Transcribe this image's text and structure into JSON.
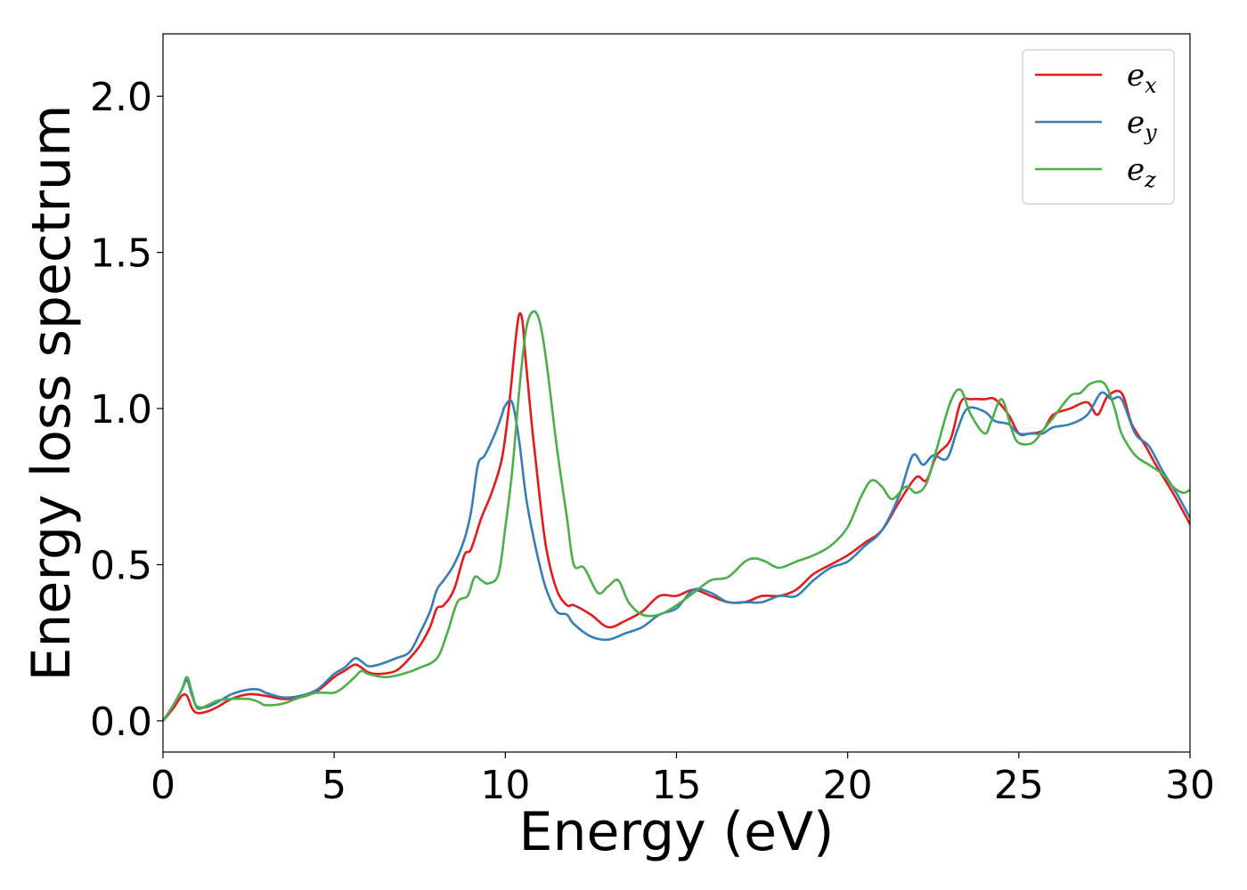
{
  "chart_data": {
    "type": "line",
    "title": "",
    "xlabel": "Energy (eV)",
    "ylabel": "Energy loss spectrum",
    "xlim": [
      0,
      30
    ],
    "ylim": [
      -0.1,
      2.2
    ],
    "xticks": [
      0,
      5,
      10,
      15,
      20,
      25,
      30
    ],
    "yticks": [
      0.0,
      0.5,
      1.0,
      1.5,
      2.0
    ],
    "xtick_labels": [
      "0",
      "5",
      "10",
      "15",
      "20",
      "25",
      "30"
    ],
    "ytick_labels": [
      "0.0",
      "0.5",
      "1.0",
      "1.5",
      "2.0"
    ],
    "grid": false,
    "legend_position": "top-right",
    "series": [
      {
        "name": "e_x",
        "legend_base": "e",
        "legend_sub": "x",
        "color": "#e41a1c",
        "x": [
          0,
          0.3,
          0.55,
          0.7,
          0.85,
          1.0,
          1.3,
          1.6,
          2.0,
          2.5,
          3.0,
          3.5,
          4.0,
          4.5,
          5.0,
          5.3,
          5.6,
          5.8,
          6.0,
          6.3,
          6.8,
          7.2,
          7.5,
          7.8,
          8.0,
          8.2,
          8.5,
          8.8,
          9.0,
          9.3,
          9.6,
          9.9,
          10.1,
          10.3,
          10.4,
          10.5,
          10.6,
          10.8,
          11.0,
          11.2,
          11.5,
          11.8,
          12.0,
          12.5,
          13.0,
          13.5,
          14.0,
          14.5,
          15.0,
          15.5,
          16.0,
          16.5,
          17.0,
          17.5,
          18.0,
          18.5,
          19.0,
          19.5,
          20.0,
          20.5,
          21.0,
          21.5,
          22.0,
          22.3,
          22.6,
          23.0,
          23.3,
          23.6,
          24.0,
          24.3,
          24.7,
          25.0,
          25.3,
          25.7,
          26.0,
          26.5,
          27.0,
          27.3,
          27.6,
          28.0,
          28.3,
          28.7,
          29.0,
          29.5,
          30.0
        ],
        "y": [
          0.0,
          0.04,
          0.08,
          0.08,
          0.04,
          0.025,
          0.03,
          0.045,
          0.07,
          0.085,
          0.08,
          0.07,
          0.075,
          0.095,
          0.14,
          0.16,
          0.18,
          0.17,
          0.155,
          0.15,
          0.16,
          0.2,
          0.24,
          0.3,
          0.36,
          0.37,
          0.42,
          0.53,
          0.55,
          0.65,
          0.73,
          0.84,
          1.0,
          1.22,
          1.3,
          1.28,
          1.15,
          0.92,
          0.72,
          0.55,
          0.42,
          0.37,
          0.37,
          0.34,
          0.3,
          0.32,
          0.35,
          0.4,
          0.4,
          0.42,
          0.4,
          0.38,
          0.38,
          0.4,
          0.4,
          0.42,
          0.47,
          0.5,
          0.53,
          0.57,
          0.61,
          0.7,
          0.78,
          0.77,
          0.85,
          0.9,
          1.02,
          1.03,
          1.03,
          1.03,
          0.98,
          0.92,
          0.92,
          0.93,
          0.98,
          1.0,
          1.02,
          0.98,
          1.04,
          1.05,
          0.95,
          0.88,
          0.82,
          0.73,
          0.63
        ]
      },
      {
        "name": "e_y",
        "legend_base": "e",
        "legend_sub": "y",
        "color": "#377eb8",
        "x": [
          0,
          0.3,
          0.55,
          0.7,
          0.85,
          1.0,
          1.3,
          1.6,
          2.0,
          2.5,
          2.8,
          3.0,
          3.5,
          4.0,
          4.5,
          5.0,
          5.3,
          5.6,
          5.8,
          6.0,
          6.3,
          6.8,
          7.2,
          7.5,
          7.8,
          8.0,
          8.2,
          8.5,
          8.8,
          9.0,
          9.2,
          9.4,
          9.7,
          9.9,
          10.0,
          10.2,
          10.4,
          10.6,
          10.8,
          11.0,
          11.2,
          11.5,
          11.8,
          12.0,
          12.5,
          13.0,
          13.5,
          14.0,
          14.5,
          15.0,
          15.5,
          16.0,
          16.5,
          17.0,
          17.5,
          18.0,
          18.5,
          19.0,
          19.5,
          20.0,
          20.5,
          21.0,
          21.5,
          21.9,
          22.2,
          22.5,
          22.9,
          23.2,
          23.5,
          24.0,
          24.3,
          24.7,
          25.0,
          25.4,
          25.7,
          26.0,
          26.5,
          27.0,
          27.4,
          27.7,
          28.0,
          28.4,
          28.8,
          29.2,
          29.6,
          30.0
        ],
        "y": [
          0.0,
          0.05,
          0.1,
          0.13,
          0.08,
          0.045,
          0.045,
          0.06,
          0.085,
          0.1,
          0.1,
          0.09,
          0.075,
          0.08,
          0.1,
          0.15,
          0.17,
          0.2,
          0.19,
          0.175,
          0.18,
          0.2,
          0.22,
          0.28,
          0.35,
          0.42,
          0.45,
          0.5,
          0.58,
          0.67,
          0.82,
          0.85,
          0.92,
          0.98,
          1.01,
          1.02,
          0.9,
          0.72,
          0.6,
          0.5,
          0.42,
          0.35,
          0.34,
          0.31,
          0.27,
          0.26,
          0.28,
          0.3,
          0.34,
          0.36,
          0.42,
          0.41,
          0.38,
          0.38,
          0.38,
          0.4,
          0.4,
          0.45,
          0.49,
          0.51,
          0.56,
          0.61,
          0.72,
          0.85,
          0.82,
          0.85,
          0.84,
          0.93,
          1.0,
          0.99,
          0.96,
          0.95,
          0.92,
          0.92,
          0.92,
          0.94,
          0.95,
          0.98,
          1.05,
          1.03,
          1.03,
          0.92,
          0.88,
          0.8,
          0.73,
          0.65
        ]
      },
      {
        "name": "e_z",
        "legend_base": "e",
        "legend_sub": "z",
        "color": "#4daf4a",
        "x": [
          0,
          0.3,
          0.55,
          0.7,
          0.85,
          1.0,
          1.3,
          1.6,
          2.0,
          2.5,
          2.8,
          3.0,
          3.5,
          4.0,
          4.5,
          5.0,
          5.3,
          5.6,
          5.8,
          6.0,
          6.5,
          7.0,
          7.5,
          8.0,
          8.3,
          8.6,
          8.9,
          9.1,
          9.3,
          9.5,
          9.8,
          10.0,
          10.2,
          10.4,
          10.6,
          10.8,
          11.0,
          11.2,
          11.5,
          11.8,
          12.0,
          12.3,
          12.7,
          13.0,
          13.3,
          13.6,
          14.0,
          14.5,
          15.0,
          15.5,
          16.0,
          16.5,
          17.0,
          17.3,
          17.6,
          18.0,
          18.5,
          19.0,
          19.5,
          20.0,
          20.4,
          20.7,
          21.0,
          21.3,
          21.7,
          22.0,
          22.3,
          22.6,
          23.0,
          23.3,
          23.6,
          24.0,
          24.2,
          24.5,
          24.8,
          25.0,
          25.4,
          25.7,
          26.0,
          26.5,
          26.8,
          27.1,
          27.5,
          27.8,
          28.0,
          28.4,
          28.8,
          29.2,
          29.5,
          29.8,
          30.0
        ],
        "y": [
          0.0,
          0.05,
          0.1,
          0.14,
          0.09,
          0.04,
          0.05,
          0.065,
          0.07,
          0.07,
          0.06,
          0.05,
          0.055,
          0.075,
          0.09,
          0.09,
          0.11,
          0.14,
          0.16,
          0.15,
          0.14,
          0.15,
          0.17,
          0.2,
          0.28,
          0.38,
          0.4,
          0.46,
          0.45,
          0.44,
          0.47,
          0.62,
          0.8,
          1.05,
          1.25,
          1.31,
          1.28,
          1.15,
          0.88,
          0.65,
          0.5,
          0.49,
          0.41,
          0.43,
          0.45,
          0.38,
          0.34,
          0.34,
          0.37,
          0.41,
          0.45,
          0.46,
          0.51,
          0.52,
          0.51,
          0.49,
          0.51,
          0.53,
          0.56,
          0.62,
          0.72,
          0.77,
          0.75,
          0.71,
          0.75,
          0.73,
          0.76,
          0.87,
          1.02,
          1.06,
          0.98,
          0.92,
          0.96,
          1.03,
          0.93,
          0.89,
          0.89,
          0.93,
          0.97,
          1.04,
          1.05,
          1.08,
          1.08,
          1.0,
          0.92,
          0.85,
          0.82,
          0.79,
          0.75,
          0.73,
          0.74
        ]
      }
    ]
  }
}
